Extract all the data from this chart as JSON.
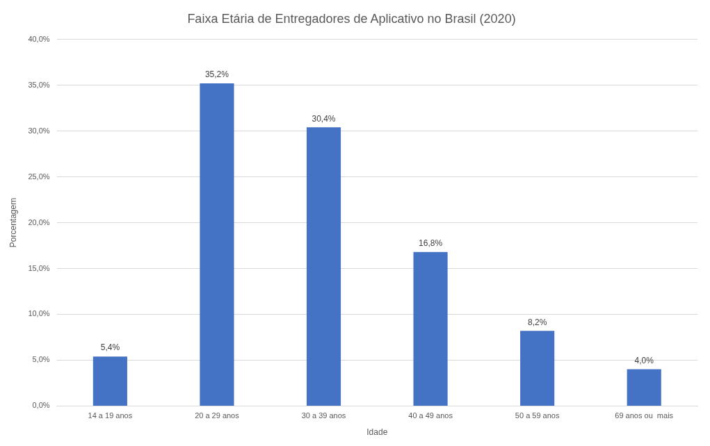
{
  "chart_data": {
    "type": "bar",
    "title": "Faixa Etária de Entregadores de Aplicativo no Brasil (2020)",
    "xlabel": "Idade",
    "ylabel": "Porcentagem",
    "categories": [
      "14 a 19 anos",
      "20 a 29 anos",
      "30 a 39 anos",
      "40 a 49 anos",
      "50 a 59 anos",
      "69 anos ou  mais"
    ],
    "values": [
      5.4,
      35.2,
      30.4,
      16.8,
      8.2,
      4.0
    ],
    "value_labels": [
      "5,4%",
      "35,2%",
      "30,4%",
      "16,8%",
      "8,2%",
      "4,0%"
    ],
    "color": "#4472c4",
    "ylim": [
      0,
      40
    ],
    "yticks": [
      {
        "value": 0,
        "label": "0,0%"
      },
      {
        "value": 5,
        "label": "5,0%"
      },
      {
        "value": 10,
        "label": "10,0%"
      },
      {
        "value": 15,
        "label": "15,0%"
      },
      {
        "value": 20,
        "label": "20,0%"
      },
      {
        "value": 25,
        "label": "25,0%"
      },
      {
        "value": 30,
        "label": "30,0%"
      },
      {
        "value": 35,
        "label": "35,0%"
      },
      {
        "value": 40,
        "label": "40,0%"
      }
    ],
    "grid": "y",
    "legend": false
  }
}
